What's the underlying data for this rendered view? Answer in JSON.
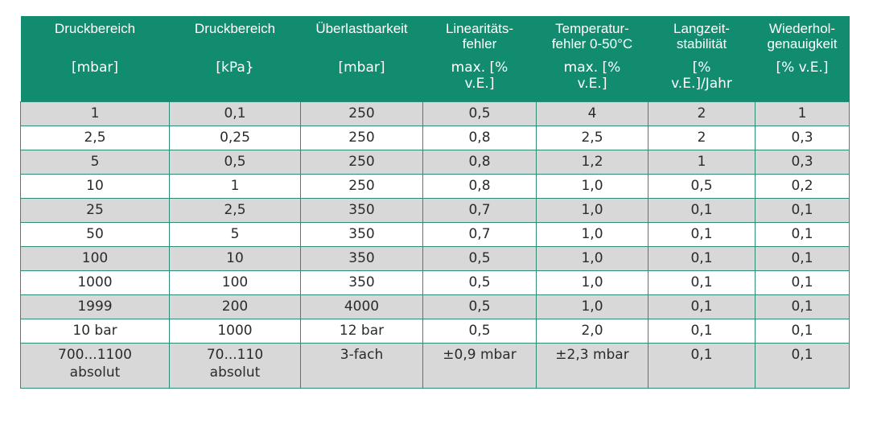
{
  "table": {
    "headers": [
      {
        "title": [
          "Druckbereich"
        ],
        "unit": [
          "[mbar]"
        ]
      },
      {
        "title": [
          "Druckbereich"
        ],
        "unit": [
          "[kPa}"
        ]
      },
      {
        "title": [
          "Überlastbarkeit"
        ],
        "unit": [
          "[mbar]"
        ]
      },
      {
        "title": [
          "Linearitäts-",
          "fehler"
        ],
        "unit": [
          "max. [%",
          "v.E.]"
        ]
      },
      {
        "title": [
          "Temperatur-",
          "fehler 0-50°C"
        ],
        "unit": [
          "max. [%",
          "v.E.]"
        ]
      },
      {
        "title": [
          "Langzeit-",
          "stabilität"
        ],
        "unit": [
          "[%",
          "v.E.]/Jahr"
        ]
      },
      {
        "title": [
          "Wiederhol-",
          "genauigkeit"
        ],
        "unit": [
          "[% v.E.]"
        ]
      }
    ],
    "rows": [
      [
        "1",
        "0,1",
        "250",
        "0,5",
        "4",
        "2",
        "1"
      ],
      [
        "2,5",
        "0,25",
        "250",
        "0,8",
        "2,5",
        "2",
        "0,3"
      ],
      [
        "5",
        "0,5",
        "250",
        "0,8",
        "1,2",
        "1",
        "0,3"
      ],
      [
        "10",
        "1",
        "250",
        "0,8",
        "1,0",
        "0,5",
        "0,2"
      ],
      [
        "25",
        "2,5",
        "350",
        "0,7",
        "1,0",
        "0,1",
        "0,1"
      ],
      [
        "50",
        "5",
        "350",
        "0,7",
        "1,0",
        "0,1",
        "0,1"
      ],
      [
        "100",
        "10",
        "350",
        "0,5",
        "1,0",
        "0,1",
        "0,1"
      ],
      [
        "1000",
        "100",
        "350",
        "0,5",
        "1,0",
        "0,1",
        "0,1"
      ],
      [
        "1999",
        "200",
        "4000",
        "0,5",
        "1,0",
        "0,1",
        "0,1"
      ],
      [
        "10 bar",
        "1000",
        "12 bar",
        "0,5",
        "2,0",
        "0,1",
        "0,1"
      ]
    ],
    "last_row": [
      [
        "700...1100",
        "absolut"
      ],
      [
        "70...110",
        "absolut"
      ],
      [
        "3-fach"
      ],
      [
        "±0,9 mbar"
      ],
      [
        "±2,3 mbar"
      ],
      [
        "0,1"
      ],
      [
        "0,1"
      ]
    ],
    "colors": {
      "header_bg": "#128c6f",
      "header_text": "#ffffff",
      "row_shade": "#d8d8d8",
      "row_plain": "#ffffff",
      "grid": "#2f8a76"
    }
  }
}
